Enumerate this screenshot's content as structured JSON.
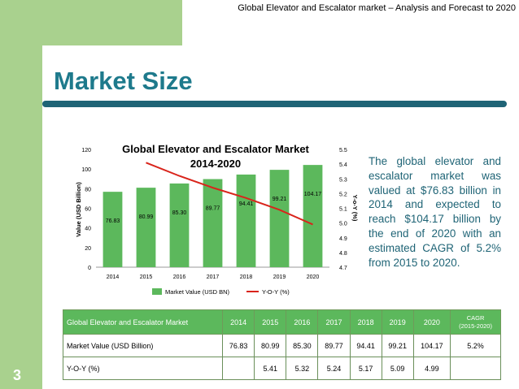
{
  "header": "Global Elevator and Escalator market – Analysis and Forecast to 2020",
  "title": "Market Size",
  "page_number": "3",
  "description": "The global elevator and escalator market was valued at $76.83 billion in 2014 and expected to reach $104.17 billion by the end of 2020 with an estimated CAGR of 5.2% from 2015 to 2020.",
  "colors": {
    "bar": "#5cb85c",
    "line": "#d9241b",
    "title": "#1e7a8c",
    "rule": "#1f6476",
    "band": "#a9d18e"
  },
  "chart_data": {
    "type": "bar",
    "title_line1": "Global Elevator and Escalator Market",
    "title_line2": "2014-2020",
    "categories": [
      "2014",
      "2015",
      "2016",
      "2017",
      "2018",
      "2019",
      "2020"
    ],
    "series": [
      {
        "name": "Market Value (USD BN)",
        "type": "bar",
        "axis": "left",
        "values": [
          76.83,
          80.99,
          85.3,
          89.77,
          94.41,
          99.21,
          104.17
        ],
        "labels": [
          "76.83",
          "80.99",
          "85.30",
          "89.77",
          "94.41",
          "99.21",
          "104.17"
        ]
      },
      {
        "name": "Y-O-Y (%)",
        "type": "line",
        "axis": "right",
        "x": [
          "2015",
          "2016",
          "2017",
          "2018",
          "2019",
          "2020"
        ],
        "values": [
          5.41,
          5.32,
          5.24,
          5.17,
          5.09,
          4.99
        ]
      }
    ],
    "ylabel": "Value (USD Billion)",
    "y2label": "Y-o-Y (%)",
    "ylim": [
      0,
      120
    ],
    "yticks": [
      "0",
      "20",
      "40",
      "60",
      "80",
      "100",
      "120"
    ],
    "y2lim": [
      4.7,
      5.5
    ],
    "y2ticks": [
      "4.7",
      "4.8",
      "4.9",
      "5.0",
      "5.1",
      "5.2",
      "5.3",
      "5.4",
      "5.5"
    ],
    "grid": false,
    "legend": "bottom"
  },
  "table": {
    "headers": [
      "Global Elevator and Escalator Market",
      "2014",
      "2015",
      "2016",
      "2017",
      "2018",
      "2019",
      "2020"
    ],
    "cagr_header": [
      "CAGR",
      "(2015-2020)"
    ],
    "rows": [
      [
        "Market Value (USD Billion)",
        "76.83",
        "80.99",
        "85.30",
        "89.77",
        "94.41",
        "99.21",
        "104.17",
        "5.2%"
      ],
      [
        "Y-O-Y (%)",
        "",
        "5.41",
        "5.32",
        "5.24",
        "5.17",
        "5.09",
        "4.99",
        ""
      ]
    ]
  }
}
